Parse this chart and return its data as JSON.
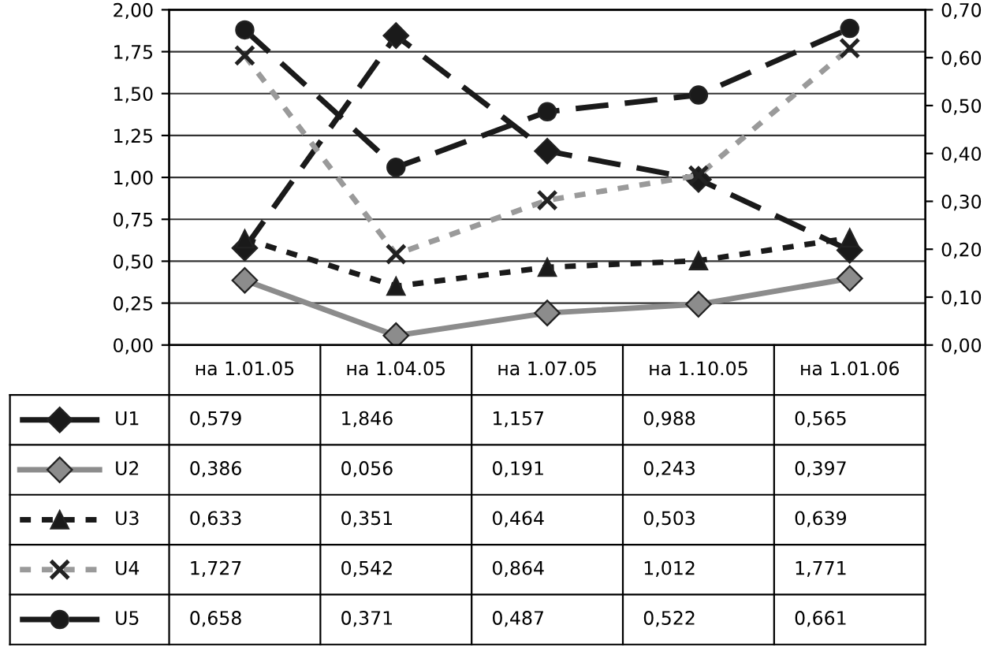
{
  "chart_data": {
    "type": "line",
    "categories": [
      "на 1.01.05",
      "на 1.04.05",
      "на 1.07.05",
      "на 1.10.05",
      "на 1.01.06"
    ],
    "ylim": [
      0,
      2
    ],
    "yticks": [
      {
        "value": 0,
        "label": "0,00"
      },
      {
        "value": 0.25,
        "label": "0,25"
      },
      {
        "value": 0.5,
        "label": "0,50"
      },
      {
        "value": 0.75,
        "label": "0,75"
      },
      {
        "value": 1,
        "label": "1,00"
      },
      {
        "value": 1.25,
        "label": "1,25"
      },
      {
        "value": 1.5,
        "label": "1,50"
      },
      {
        "value": 1.75,
        "label": "1,75"
      },
      {
        "value": 2,
        "label": "2,00"
      }
    ],
    "y2lim": [
      0,
      0.7
    ],
    "y2ticks": [
      {
        "value": 0,
        "label": "0,00"
      },
      {
        "value": 0.1,
        "label": "0,10"
      },
      {
        "value": 0.2,
        "label": "0,20"
      },
      {
        "value": 0.3,
        "label": "0,30"
      },
      {
        "value": 0.4,
        "label": "0,40"
      },
      {
        "value": 0.5,
        "label": "0,50"
      },
      {
        "value": 0.6,
        "label": "0,60"
      },
      {
        "value": 0.7,
        "label": "0,70"
      }
    ],
    "grid": "y",
    "legend": "bottom left",
    "series": [
      {
        "name": "U1",
        "color": "#1a1a1a",
        "marker": "diamond",
        "line_style": "dashed",
        "values": [
          0.579,
          1.846,
          1.157,
          0.988,
          0.565
        ],
        "value_labels": [
          "0,579",
          "1,846",
          "1,157",
          "0,988",
          "0,565"
        ]
      },
      {
        "name": "U2",
        "color": "#8c8c8c",
        "marker": "diamond",
        "line_style": "solid",
        "values": [
          0.386,
          0.056,
          0.191,
          0.243,
          0.397
        ],
        "value_labels": [
          "0,386",
          "0,056",
          "0,191",
          "0,243",
          "0,397"
        ]
      },
      {
        "name": "U3",
        "color": "#1a1a1a",
        "marker": "triangle",
        "line_style": "dotted",
        "values": [
          0.633,
          0.351,
          0.464,
          0.503,
          0.639
        ],
        "value_labels": [
          "0,633",
          "0,351",
          "0,464",
          "0,503",
          "0,639"
        ]
      },
      {
        "name": "U4",
        "color": "#9a9a9a",
        "marker": "cross",
        "line_style": "dotted",
        "values": [
          1.727,
          0.542,
          0.864,
          1.012,
          1.771
        ],
        "value_labels": [
          "1,727",
          "0,542",
          "0,864",
          "1,012",
          "1,771"
        ]
      },
      {
        "name": "U5",
        "color": "#1a1a1a",
        "marker": "circle",
        "line_style": "dashed",
        "axis": "y2",
        "values": [
          0.658,
          0.371,
          0.487,
          0.522,
          0.661
        ],
        "value_labels": [
          "0,658",
          "0,371",
          "0,487",
          "0,522",
          "0,661"
        ]
      }
    ]
  }
}
